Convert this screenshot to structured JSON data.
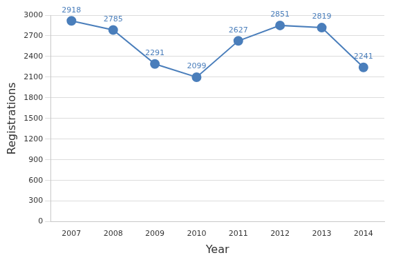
{
  "chart_data": {
    "type": "line",
    "x_label": "Year",
    "y_label": "Registrations",
    "categories": [
      "2007",
      "2008",
      "2009",
      "2010",
      "2011",
      "2012",
      "2013",
      "2014"
    ],
    "values": [
      2918,
      2785,
      2291,
      2099,
      2627,
      2851,
      2819,
      2241
    ],
    "color": "#4a7ebb",
    "marker": "circle",
    "ylim": [
      0,
      3000
    ],
    "yticks": [
      0,
      300,
      600,
      900,
      1200,
      1500,
      1800,
      2100,
      2400,
      2700,
      3000
    ],
    "grid": true,
    "data_labels": true
  }
}
